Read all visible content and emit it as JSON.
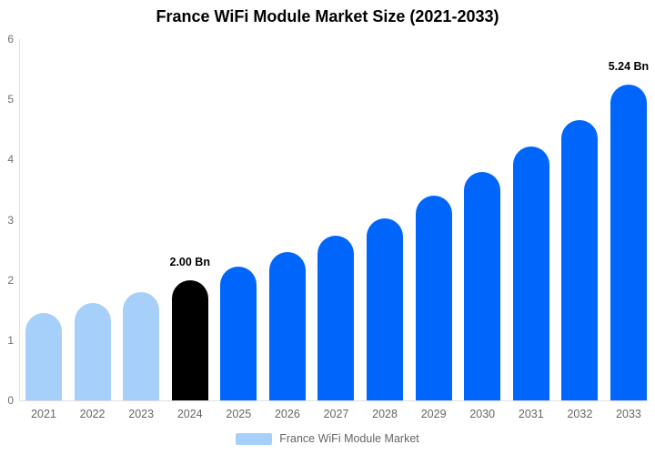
{
  "chart_data": {
    "type": "bar",
    "title": "France WiFi Module Market Size (2021-2033)",
    "categories": [
      "2021",
      "2022",
      "2023",
      "2024",
      "2025",
      "2026",
      "2027",
      "2028",
      "2029",
      "2030",
      "2031",
      "2032",
      "2033"
    ],
    "values": [
      1.45,
      1.61,
      1.8,
      2.0,
      2.22,
      2.47,
      2.74,
      3.03,
      3.4,
      3.79,
      4.21,
      4.66,
      5.24
    ],
    "data_labels": [
      "",
      "",
      "",
      "2.00 Bn",
      "",
      "",
      "",
      "",
      "",
      "",
      "",
      "",
      "5.24 Bn"
    ],
    "bar_colors": [
      "#a6cffa",
      "#a6cffa",
      "#a6cffa",
      "#000000",
      "#0066fb",
      "#0066fb",
      "#0066fb",
      "#0066fb",
      "#0066fb",
      "#0066fb",
      "#0066fb",
      "#0066fb",
      "#0066fb"
    ],
    "xlabel": "",
    "ylabel": "",
    "ylim": [
      0,
      6
    ],
    "yticks": [
      0,
      1,
      2,
      3,
      4,
      5,
      6
    ],
    "grid": false,
    "legend": {
      "label": "France WiFi Module Market",
      "swatch_color": "#a6cffa",
      "position": "bottom"
    },
    "colors": {
      "axis_line": "#e0e0e0",
      "tick_label": "#666666",
      "value_label": "#000000",
      "background": "#ffffff"
    }
  }
}
